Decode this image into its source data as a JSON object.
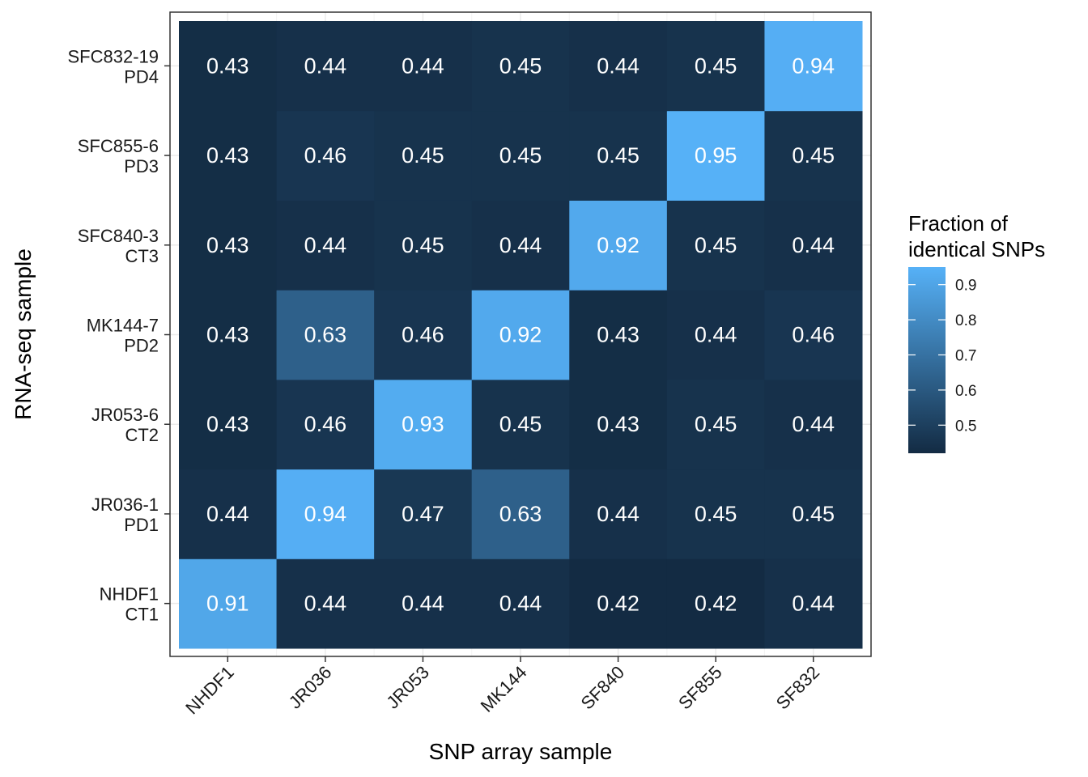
{
  "chart_data": {
    "type": "heatmap",
    "x_categories": [
      "NHDF1",
      "JR036",
      "JR053",
      "MK144",
      "SF840",
      "SF855",
      "SF832"
    ],
    "y_categories": [
      [
        "NHDF1",
        "CT1"
      ],
      [
        "JR036-1",
        "PD1"
      ],
      [
        "JR053-6",
        "CT2"
      ],
      [
        "MK144-7",
        "PD2"
      ],
      [
        "SFC840-3",
        "CT3"
      ],
      [
        "SFC855-6",
        "PD3"
      ],
      [
        "SFC832-19",
        "PD4"
      ]
    ],
    "values": [
      [
        0.91,
        0.44,
        0.44,
        0.44,
        0.42,
        0.42,
        0.44
      ],
      [
        0.44,
        0.94,
        0.47,
        0.63,
        0.44,
        0.45,
        0.45
      ],
      [
        0.43,
        0.46,
        0.93,
        0.45,
        0.43,
        0.45,
        0.44
      ],
      [
        0.43,
        0.63,
        0.46,
        0.92,
        0.43,
        0.44,
        0.46
      ],
      [
        0.43,
        0.44,
        0.45,
        0.44,
        0.92,
        0.45,
        0.44
      ],
      [
        0.43,
        0.46,
        0.45,
        0.45,
        0.45,
        0.95,
        0.45
      ],
      [
        0.43,
        0.44,
        0.44,
        0.45,
        0.44,
        0.45,
        0.94
      ]
    ],
    "xlabel": "SNP array sample",
    "ylabel": "RNA-seq sample",
    "legend": {
      "title": [
        "Fraction of",
        "identical SNPs"
      ],
      "ticks": [
        0.5,
        0.6,
        0.7,
        0.8,
        0.9
      ],
      "tick_labels": [
        "0.5",
        "0.6",
        "0.7",
        "0.8",
        "0.9"
      ],
      "range": [
        0.42,
        0.95
      ],
      "position": "right"
    },
    "color_low": "#132B43",
    "color_high": "#56B1F7",
    "grid": true
  }
}
